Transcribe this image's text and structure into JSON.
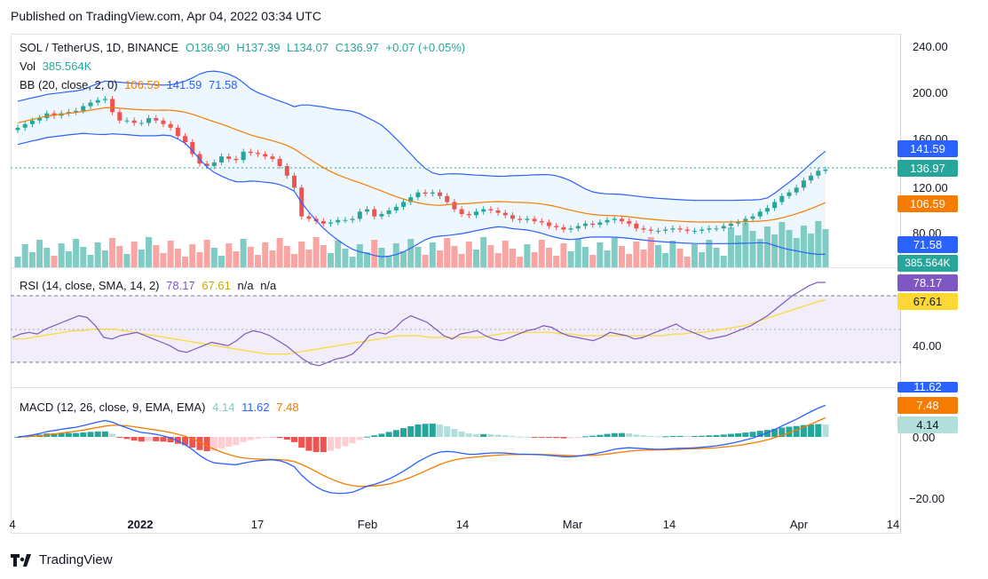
{
  "caption": "Published on TradingView.com, Apr 04, 2022 03:34 UTC",
  "brand": "TradingView",
  "logo_icon": "tradingview-logo-icon",
  "main_legend": {
    "symbol": "SOL / TetherUS, 1D, BINANCE",
    "open": "O136.90",
    "high": "H137.39",
    "low": "L134.07",
    "close": "C136.97",
    "change": "+0.07 (+0.05%)",
    "vol_label": "Vol",
    "vol_value": "385.564K",
    "bb_label": "BB (20, close, 2, 0)",
    "bb_basis": "106.59",
    "bb_upper": "141.59",
    "bb_lower": "71.58"
  },
  "rsi_legend": {
    "label": "RSI (14, close, SMA, 14, 2)",
    "rsi": "78.17",
    "sma": "67.61",
    "na1": "n/a",
    "na2": "n/a"
  },
  "macd_legend": {
    "label": "MACD (12, 26, close, 9, EMA, EMA)",
    "hist": "4.14",
    "macd": "11.62",
    "signal": "7.48"
  },
  "colors": {
    "up": "#26a69a",
    "down": "#ef5350",
    "bb_upper": "#2962ff",
    "bb_basis": "#f57c00",
    "rsi": "#7e57c2",
    "rsi_sma": "#fdd835",
    "macd": "#2962ff",
    "signal": "#f57c00"
  },
  "axis": {
    "price_ticks": [
      "240.00",
      "200.00",
      "160.00",
      "120.00",
      "80.00"
    ],
    "rsi_ticks": [
      "40.00"
    ],
    "macd_ticks": [
      "0.00",
      "−20.00"
    ],
    "x_ticks": [
      "4",
      "2022",
      "17",
      "Feb",
      "14",
      "Mar",
      "14",
      "Apr",
      "14"
    ]
  },
  "tags": {
    "bb_upper": "141.59",
    "close": "136.97",
    "bb_basis": "106.59",
    "bb_lower": "71.58",
    "volume": "385.564K",
    "rsi": "78.17",
    "rsi_sma": "67.61",
    "macd": "11.62",
    "signal": "7.48",
    "hist": "4.14"
  },
  "chart_data": [
    {
      "type": "candlestick",
      "title": "SOL / TetherUS, 1D, BINANCE",
      "ylim": [
        55,
        255
      ],
      "x_range": [
        "2021-12-04",
        "2022-04-14"
      ],
      "series": [
        {
          "name": "Close (approx.)",
          "values": [
            172,
            175,
            178,
            180,
            184,
            182,
            184,
            185,
            186,
            190,
            193,
            195,
            196,
            185,
            178,
            178,
            176,
            176,
            180,
            178,
            175,
            172,
            165,
            160,
            150,
            142,
            140,
            143,
            148,
            146,
            145,
            152,
            151,
            150,
            148,
            146,
            140,
            132,
            122,
            98,
            96,
            94,
            92,
            93,
            95,
            95,
            96,
            102,
            104,
            98,
            100,
            103,
            106,
            110,
            114,
            118,
            117,
            118,
            115,
            110,
            104,
            100,
            99,
            102,
            104,
            103,
            101,
            99,
            96,
            95,
            96,
            94,
            93,
            90,
            89,
            87,
            88,
            90,
            92,
            91,
            93,
            95,
            96,
            94,
            92,
            88,
            87,
            86,
            86,
            87,
            88,
            87,
            86,
            86,
            87,
            88,
            88,
            90,
            92,
            93,
            96,
            98,
            102,
            105,
            110,
            115,
            118,
            122,
            128,
            132,
            136,
            137
          ]
        },
        {
          "name": "BB (20, close, 2, 0) basis",
          "values": []
        }
      ]
    },
    {
      "type": "bar",
      "title": "Vol",
      "note": "volume bars coloured by candle direction; last value shown",
      "series": [
        {
          "name": "Vol",
          "values": [
            385.564
          ]
        }
      ]
    },
    {
      "type": "line",
      "title": "RSI (14, close, SMA, 14, 2)",
      "ylim": [
        20,
        90
      ],
      "series": [
        {
          "name": "RSI",
          "values": [
            45,
            47,
            48,
            47,
            50,
            52,
            54,
            56,
            58,
            57,
            52,
            45,
            44,
            46,
            47,
            48,
            46,
            44,
            42,
            40,
            37,
            36,
            38,
            40,
            42,
            41,
            40,
            43,
            47,
            49,
            48,
            46,
            43,
            40,
            36,
            32,
            29,
            28,
            30,
            32,
            33,
            35,
            40,
            46,
            48,
            47,
            50,
            55,
            58,
            56,
            54,
            50,
            46,
            44,
            47,
            48,
            49,
            46,
            44,
            43,
            45,
            47,
            49,
            50,
            52,
            51,
            48,
            46,
            45,
            44,
            43,
            45,
            48,
            47,
            46,
            44,
            45,
            47,
            49,
            51,
            53,
            50,
            48,
            46,
            44,
            45,
            46,
            48,
            50,
            52,
            55,
            58,
            62,
            66,
            70,
            73,
            76,
            78,
            78
          ]
        },
        {
          "name": "SMA",
          "values": [
            44,
            44,
            45,
            46,
            47,
            48,
            49,
            49,
            50,
            50,
            50,
            49,
            48,
            47,
            46,
            45,
            44,
            43,
            42,
            41,
            40,
            39,
            38,
            37,
            36,
            35,
            35,
            35,
            36,
            37,
            38,
            39,
            40,
            41,
            42,
            43,
            44,
            45,
            46,
            46,
            46,
            45,
            45,
            45,
            45,
            45,
            45,
            46,
            47,
            48,
            48,
            48,
            48,
            48,
            47,
            47,
            46,
            46,
            46,
            46,
            46,
            46,
            46,
            46,
            46,
            47,
            47,
            48,
            48,
            49,
            50,
            51,
            52,
            54,
            56,
            58,
            60,
            62,
            64,
            66,
            67.61
          ]
        }
      ]
    },
    {
      "type": "line",
      "title": "MACD (12, 26, close, 9, EMA, EMA)",
      "ylim": [
        -22,
        14
      ],
      "series": [
        {
          "name": "Histogram",
          "values": [
            4.14
          ]
        },
        {
          "name": "MACD",
          "values": [
            11.62
          ]
        },
        {
          "name": "Signal",
          "values": [
            7.48
          ]
        }
      ]
    }
  ]
}
